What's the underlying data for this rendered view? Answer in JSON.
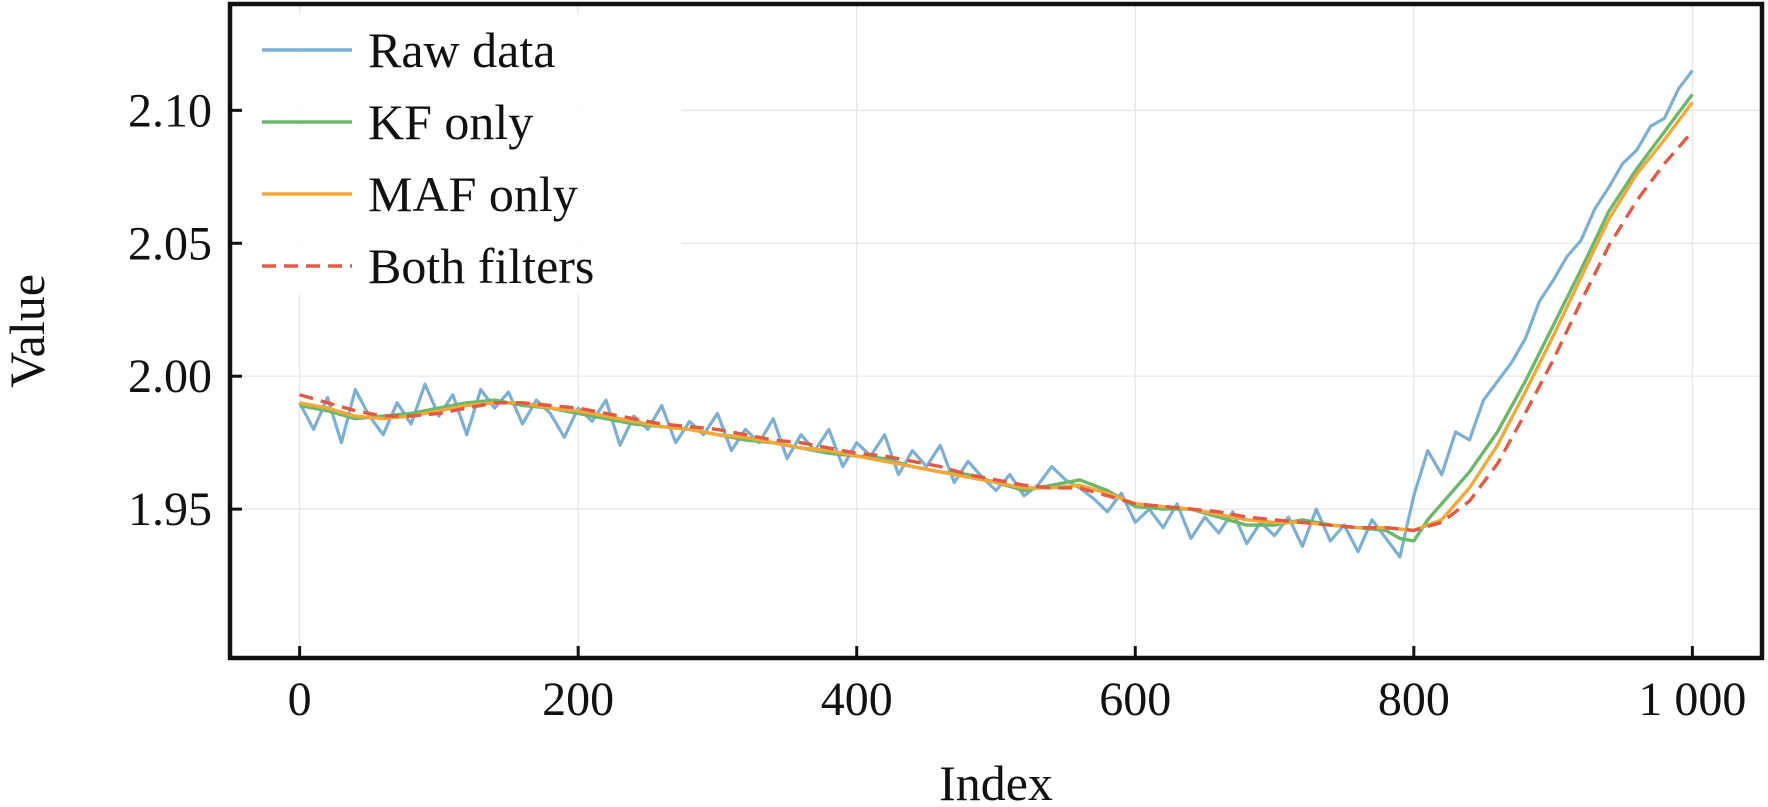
{
  "chart_data": {
    "type": "line",
    "title": "",
    "xlabel": "Index",
    "ylabel": "Value",
    "xlim": [
      -50,
      1050
    ],
    "ylim": [
      1.894,
      2.14
    ],
    "xticks": [
      0,
      200,
      400,
      600,
      800,
      1000
    ],
    "xtick_labels": [
      "0",
      "200",
      "400",
      "600",
      "800",
      "1 000"
    ],
    "yticks": [
      1.95,
      2.0,
      2.05,
      2.1
    ],
    "ytick_labels": [
      "1.95",
      "2.00",
      "2.05",
      "2.10"
    ],
    "grid": true,
    "legend_position": "top-left",
    "series": [
      {
        "name": "Raw data",
        "color": "#7bafd4",
        "dash": "solid",
        "x": [
          0,
          10,
          20,
          30,
          40,
          50,
          60,
          70,
          80,
          90,
          100,
          110,
          120,
          130,
          140,
          150,
          160,
          170,
          180,
          190,
          200,
          210,
          220,
          230,
          240,
          250,
          260,
          270,
          280,
          290,
          300,
          310,
          320,
          330,
          340,
          350,
          360,
          370,
          380,
          390,
          400,
          410,
          420,
          430,
          440,
          450,
          460,
          470,
          480,
          490,
          500,
          510,
          520,
          530,
          540,
          550,
          560,
          570,
          580,
          590,
          600,
          610,
          620,
          630,
          640,
          650,
          660,
          670,
          680,
          690,
          700,
          710,
          720,
          730,
          740,
          750,
          760,
          770,
          780,
          790,
          800,
          810,
          820,
          830,
          840,
          850,
          860,
          870,
          880,
          890,
          900,
          910,
          920,
          930,
          940,
          950,
          960,
          970,
          980,
          990,
          1000
        ],
        "values": [
          1.99,
          1.98,
          1.992,
          1.975,
          1.995,
          1.985,
          1.978,
          1.99,
          1.982,
          1.997,
          1.985,
          1.993,
          1.978,
          1.995,
          1.988,
          1.994,
          1.982,
          1.991,
          1.986,
          1.977,
          1.988,
          1.983,
          1.991,
          1.974,
          1.985,
          1.98,
          1.989,
          1.975,
          1.983,
          1.978,
          1.986,
          1.972,
          1.98,
          1.975,
          1.984,
          1.969,
          1.978,
          1.972,
          1.98,
          1.966,
          1.975,
          1.97,
          1.978,
          1.963,
          1.972,
          1.966,
          1.974,
          1.96,
          1.968,
          1.962,
          1.957,
          1.963,
          1.955,
          1.959,
          1.966,
          1.961,
          1.958,
          1.954,
          1.949,
          1.956,
          1.945,
          1.95,
          1.943,
          1.952,
          1.939,
          1.947,
          1.941,
          1.949,
          1.937,
          1.945,
          1.94,
          1.947,
          1.936,
          1.95,
          1.938,
          1.944,
          1.934,
          1.946,
          1.939,
          1.932,
          1.955,
          1.972,
          1.963,
          1.979,
          1.976,
          1.991,
          1.998,
          2.005,
          2.014,
          2.028,
          2.036,
          2.045,
          2.051,
          2.063,
          2.071,
          2.08,
          2.085,
          2.094,
          2.097,
          2.108,
          2.115
        ]
      },
      {
        "name": "KF only",
        "color": "#6cb86a",
        "dash": "solid",
        "x": [
          0,
          20,
          40,
          60,
          80,
          100,
          120,
          140,
          160,
          180,
          200,
          220,
          240,
          260,
          280,
          300,
          320,
          340,
          360,
          380,
          400,
          420,
          440,
          460,
          480,
          500,
          520,
          540,
          560,
          580,
          600,
          620,
          640,
          660,
          680,
          700,
          720,
          740,
          760,
          780,
          790,
          800,
          810,
          820,
          840,
          860,
          880,
          900,
          920,
          940,
          960,
          980,
          1000
        ],
        "values": [
          1.989,
          1.987,
          1.984,
          1.985,
          1.986,
          1.988,
          1.99,
          1.991,
          1.989,
          1.988,
          1.986,
          1.984,
          1.982,
          1.981,
          1.98,
          1.978,
          1.976,
          1.975,
          1.973,
          1.971,
          1.97,
          1.969,
          1.966,
          1.964,
          1.963,
          1.96,
          1.957,
          1.959,
          1.961,
          1.957,
          1.951,
          1.95,
          1.95,
          1.947,
          1.944,
          1.944,
          1.946,
          1.944,
          1.943,
          1.942,
          1.939,
          1.938,
          1.946,
          1.952,
          1.964,
          1.979,
          1.998,
          2.019,
          2.04,
          2.062,
          2.078,
          2.092,
          2.106
        ]
      },
      {
        "name": "MAF only",
        "color": "#f2a93b",
        "dash": "solid",
        "x": [
          0,
          20,
          40,
          60,
          80,
          100,
          120,
          140,
          160,
          180,
          200,
          220,
          240,
          260,
          280,
          300,
          320,
          340,
          360,
          380,
          400,
          420,
          440,
          460,
          480,
          500,
          520,
          540,
          560,
          580,
          600,
          620,
          640,
          660,
          680,
          700,
          720,
          740,
          760,
          780,
          800,
          820,
          840,
          860,
          880,
          900,
          920,
          940,
          960,
          980,
          1000
        ],
        "values": [
          1.99,
          1.988,
          1.985,
          1.984,
          1.985,
          1.987,
          1.989,
          1.99,
          1.99,
          1.988,
          1.987,
          1.985,
          1.983,
          1.981,
          1.98,
          1.978,
          1.977,
          1.975,
          1.973,
          1.972,
          1.97,
          1.968,
          1.966,
          1.964,
          1.962,
          1.96,
          1.958,
          1.958,
          1.959,
          1.956,
          1.952,
          1.951,
          1.95,
          1.948,
          1.946,
          1.945,
          1.945,
          1.944,
          1.943,
          1.943,
          1.942,
          1.946,
          1.958,
          1.974,
          1.994,
          2.015,
          2.037,
          2.059,
          2.076,
          2.089,
          2.103
        ]
      },
      {
        "name": "Both filters",
        "color": "#e05a45",
        "dash": "dashed",
        "x": [
          0,
          20,
          40,
          60,
          80,
          100,
          120,
          140,
          160,
          180,
          200,
          220,
          240,
          260,
          280,
          300,
          320,
          340,
          360,
          380,
          400,
          420,
          440,
          460,
          480,
          500,
          520,
          540,
          560,
          580,
          600,
          620,
          640,
          660,
          680,
          700,
          720,
          740,
          760,
          780,
          800,
          820,
          840,
          860,
          880,
          900,
          920,
          940,
          960,
          980,
          1000
        ],
        "values": [
          1.993,
          1.99,
          1.987,
          1.985,
          1.985,
          1.986,
          1.988,
          1.99,
          1.99,
          1.989,
          1.988,
          1.986,
          1.984,
          1.982,
          1.981,
          1.98,
          1.978,
          1.976,
          1.975,
          1.973,
          1.971,
          1.97,
          1.968,
          1.966,
          1.963,
          1.961,
          1.959,
          1.958,
          1.958,
          1.955,
          1.952,
          1.951,
          1.95,
          1.949,
          1.947,
          1.946,
          1.945,
          1.944,
          1.943,
          1.943,
          1.942,
          1.945,
          1.953,
          1.967,
          1.986,
          2.006,
          2.028,
          2.049,
          2.066,
          2.08,
          2.092
        ]
      }
    ]
  }
}
